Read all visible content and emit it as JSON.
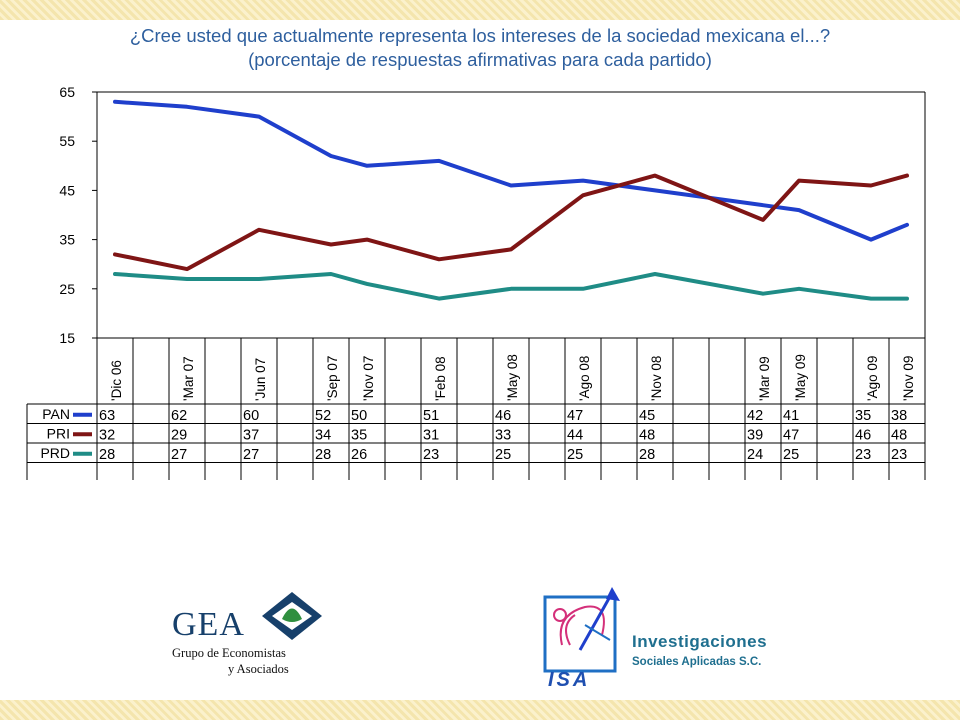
{
  "title": {
    "line1": "¿Cree usted que actualmente representa los intereses de la sociedad mexicana el...?",
    "line2": "(porcentaje de respuestas afirmativas para cada partido)"
  },
  "chart_data": {
    "type": "line",
    "categories": [
      "'Dic 06",
      "",
      "'Mar 07",
      "",
      "'Jun 07",
      "",
      "'Sep 07",
      "'Nov 07",
      "",
      "'Feb 08",
      "",
      "'May 08",
      "",
      "'Ago 08",
      "",
      "'Nov 08",
      "",
      "",
      "'Mar 09",
      "'May 09",
      "",
      "'Ago 09",
      "'Nov 09"
    ],
    "yticks": [
      15,
      25,
      35,
      45,
      55,
      65
    ],
    "ylim": [
      15,
      65
    ],
    "grid": "horizontal top line only",
    "legend": "data table below chart",
    "series": [
      {
        "name": "PAN",
        "color": "#1f3fcc",
        "values": [
          63,
          null,
          62,
          null,
          60,
          null,
          52,
          50,
          null,
          51,
          null,
          46,
          null,
          47,
          null,
          45,
          null,
          null,
          42,
          41,
          null,
          35,
          38
        ]
      },
      {
        "name": "PRI",
        "color": "#7f1515",
        "values": [
          32,
          null,
          29,
          null,
          37,
          null,
          34,
          35,
          null,
          31,
          null,
          33,
          null,
          44,
          null,
          48,
          null,
          null,
          39,
          47,
          null,
          46,
          48
        ]
      },
      {
        "name": "PRD",
        "color": "#1f8c86",
        "values": [
          28,
          null,
          27,
          null,
          27,
          null,
          28,
          26,
          null,
          23,
          null,
          25,
          null,
          25,
          null,
          28,
          null,
          null,
          24,
          25,
          null,
          23,
          23
        ]
      }
    ]
  },
  "logos": {
    "gea": {
      "name": "GEA",
      "line1": "Grupo de Economistas",
      "line2": "y Asociados"
    },
    "isa": {
      "mark": "ISA",
      "line1": "Investigaciones",
      "line2": "Sociales Aplicadas S.C."
    }
  }
}
